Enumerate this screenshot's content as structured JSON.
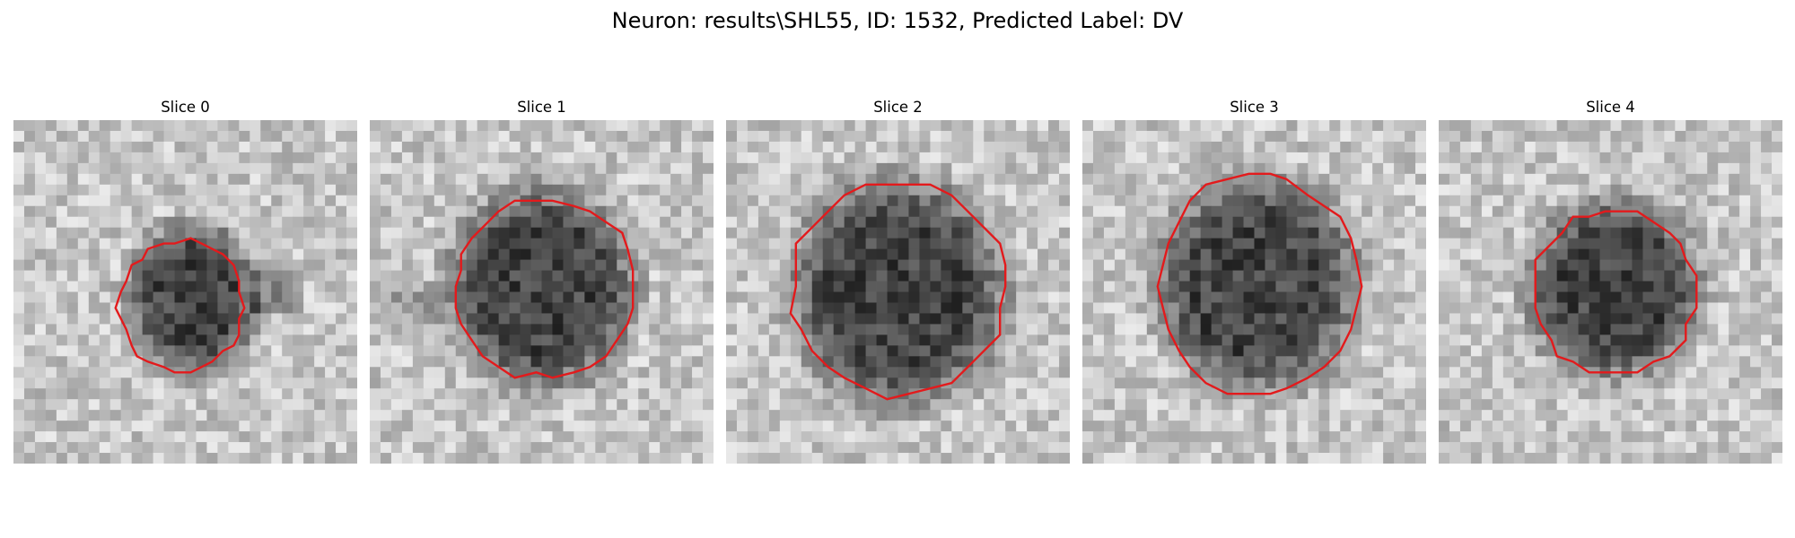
{
  "figure": {
    "title": "Neuron: results\\SHL55, ID: 1532, Predicted Label: DV"
  },
  "slices": [
    {
      "title": "Slice 0",
      "dark_center": [
        0.52,
        0.52
      ],
      "dark_radius": [
        0.19,
        0.22
      ],
      "contour_center": [
        0.49,
        0.54
      ],
      "contour_radius": [
        0.18,
        0.19
      ],
      "seed": 11
    },
    {
      "title": "Slice 1",
      "dark_center": [
        0.5,
        0.49
      ],
      "dark_radius": [
        0.27,
        0.29
      ],
      "contour_center": [
        0.51,
        0.49
      ],
      "contour_radius": [
        0.26,
        0.26
      ],
      "seed": 23
    },
    {
      "title": "Slice 2",
      "dark_center": [
        0.5,
        0.5
      ],
      "dark_radius": [
        0.31,
        0.33
      ],
      "contour_center": [
        0.5,
        0.49
      ],
      "contour_radius": [
        0.31,
        0.31
      ],
      "seed": 37
    },
    {
      "title": "Slice 3",
      "dark_center": [
        0.51,
        0.48
      ],
      "dark_radius": [
        0.29,
        0.31
      ],
      "contour_center": [
        0.51,
        0.48
      ],
      "contour_radius": [
        0.29,
        0.32
      ],
      "seed": 41
    },
    {
      "title": "Slice 4",
      "dark_center": [
        0.51,
        0.49
      ],
      "dark_radius": [
        0.25,
        0.26
      ],
      "contour_center": [
        0.51,
        0.5
      ],
      "contour_radius": [
        0.24,
        0.24
      ],
      "seed": 53
    }
  ],
  "colors": {
    "contour": "#e31a1c"
  }
}
